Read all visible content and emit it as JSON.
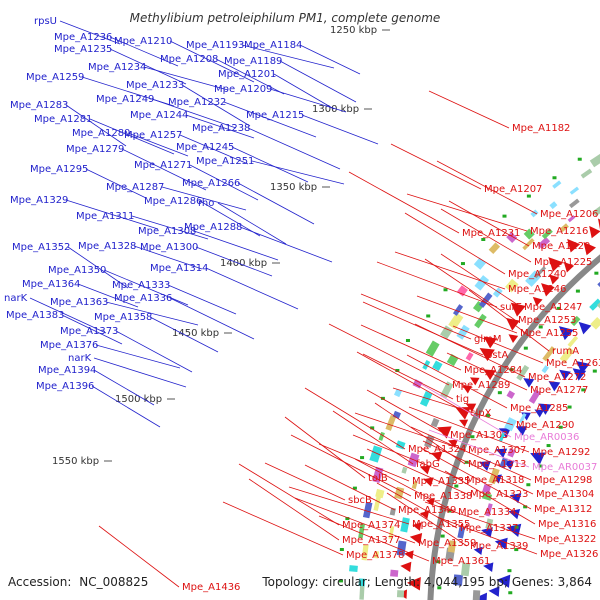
{
  "title": "Methylibium petroleiphilum PM1, complete genome",
  "footer": {
    "accession_label": "Accession:",
    "accession": "NC_008825",
    "summary": "Topology: circular; Length: 4,044,195 bp; Genes: 3,864"
  },
  "colors": {
    "reverse_strand": "#2222cc",
    "forward_strand": "#dd1111",
    "rna_gene": "#e87bd8",
    "backbone": "#888888",
    "tick": "#555555"
  },
  "scale_ticks": [
    "1250 kbp",
    "1300 kbp",
    "1350 kbp",
    "1400 kbp",
    "1450 kbp",
    "1500 kbp",
    "1550 kbp"
  ],
  "left_labels": [
    "rpsU",
    "Mpe_A1236",
    "Mpe_A1235",
    "Mpe_A1210",
    "Mpe_A1193",
    "Mpe_A1184",
    "Mpe_A1208",
    "Mpe_A1189",
    "Mpe_A1234",
    "Mpe_A1259",
    "Mpe_A1201",
    "Mpe_A1233",
    "Mpe_A1209",
    "Mpe_A1249",
    "Mpe_A1232",
    "Mpe_A1283",
    "Mpe_A1244",
    "Mpe_A1215",
    "Mpe_A1281",
    "Mpe_A1238",
    "Mpe_A1280",
    "Mpe_A1257",
    "Mpe_A1245",
    "Mpe_A1279",
    "Mpe_A1251",
    "Mpe_A1295",
    "Mpe_A1271",
    "Mpe_A1266",
    "Mpe_A1287",
    "Mpe_A1329",
    "Mpe_A1286",
    "rho",
    "Mpe_A1311",
    "Mpe_A1308",
    "Mpe_A1288",
    "Mpe_A1352",
    "Mpe_A1328",
    "Mpe_A1300",
    "Mpe_A1350",
    "Mpe_A1314",
    "Mpe_A1364",
    "Mpe_A1333",
    "narK",
    "Mpe_A1336",
    "Mpe_A1363",
    "Mpe_A1383",
    "Mpe_A1358",
    "Mpe_A1373",
    "Mpe_A1376",
    "narK",
    "Mpe_A1394",
    "Mpe_A1396"
  ],
  "right_labels": [
    "Mpe_A1182",
    "Mpe_A1207",
    "Mpe_A1206",
    "Mpe_A1231",
    "Mpe_A1216",
    "Mpe_A1220",
    "Mpe_A1225",
    "Mpe_A1240",
    "Mpe_A1246",
    "surE",
    "Mpe_A1247",
    "Mpe_A1253",
    "Mpe_A1255",
    "glmM",
    "pstA",
    "rumA",
    "Mpe_A1263",
    "Mpe_A1284",
    "Mpe_A1272",
    "Mpe_A1289",
    "Mpe_A1277",
    "tig",
    "Mpe_A1285",
    "clpX",
    "Mpe_A1290",
    "Mpe_A1303",
    "Mpe_AR0036",
    "Mpe_A1324",
    "Mpe_A1307",
    "Mpe_A1292",
    "fabG",
    "Mpe_A1313",
    "Mpe_AR0037",
    "Mpe_A1318",
    "Mpe_A1298",
    "tolB",
    "Mpe_A1335",
    "Mpe_A1323",
    "Mpe_A1304",
    "Mpe_A1338",
    "sbcB",
    "Mpe_A1349",
    "Mpe_A1334",
    "Mpe_A1312",
    "Mpe_A1355",
    "Mpe_A1337",
    "Mpe_A1316",
    "Mpe_A1374",
    "Mpe_A1322",
    "Mpe_A1359",
    "Mpe_A1339",
    "Mpe_A1377",
    "Mpe_A1326",
    "Mpe_A1361",
    "Mpe_A1378",
    "Mpe_A1436"
  ]
}
